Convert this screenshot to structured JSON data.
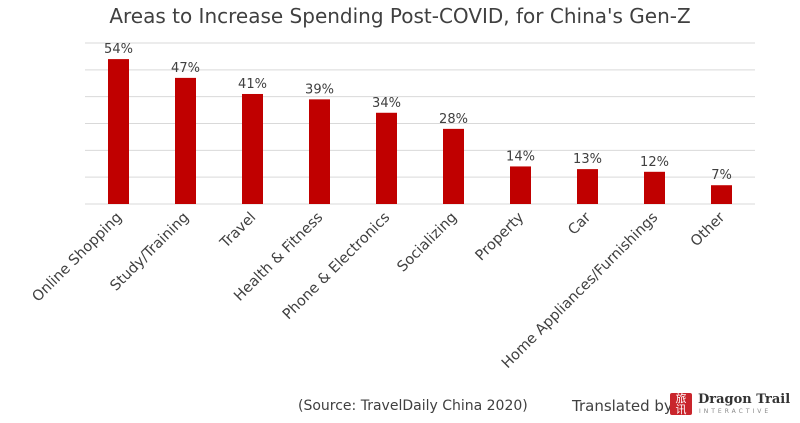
{
  "chart_data": {
    "type": "bar",
    "title": "Areas to Increase Spending Post-COVID, for China's Gen-Z",
    "categories": [
      "Online Shopping",
      "Study/Training",
      "Travel",
      "Health & Fitness",
      "Phone & Electronics",
      "Socializing",
      "Property",
      "Car",
      "Home Appliances/Furnishings",
      "Other"
    ],
    "values": [
      54,
      47,
      41,
      39,
      34,
      28,
      14,
      13,
      12,
      7
    ],
    "data_labels": [
      "54%",
      "47%",
      "41%",
      "39%",
      "34%",
      "28%",
      "14%",
      "13%",
      "12%",
      "7%"
    ],
    "ylim": [
      0,
      60
    ],
    "grid": true,
    "bar_color": "#c00000"
  },
  "footer": {
    "source": "(Source: TravelDaily China 2020)",
    "translated_by": "Translated by",
    "logo_brand": "Dragon Trail",
    "logo_sub": "INTERACTIVE"
  }
}
